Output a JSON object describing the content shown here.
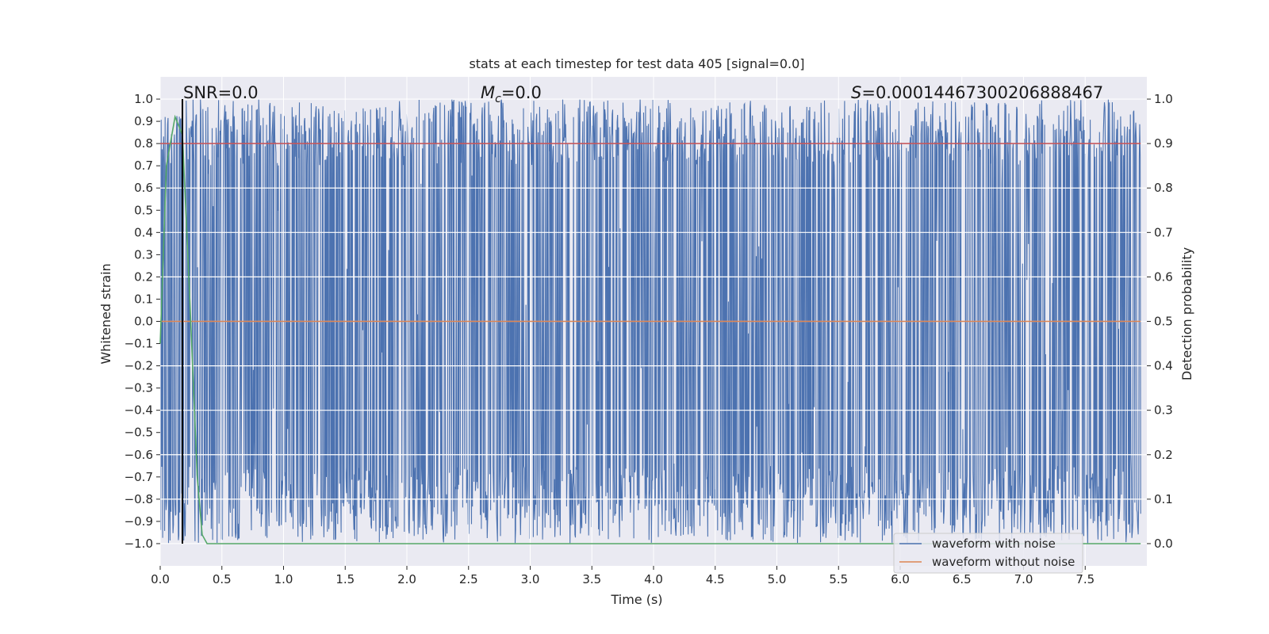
{
  "chart_data": {
    "type": "line",
    "title": "stats at each timestep for test data 405 [signal=0.0]",
    "xlabel": "Time (s)",
    "ylabel": "Whitened strain",
    "ylabel_right": "Detection probability",
    "xlim": [
      0.0,
      8.0
    ],
    "ylim": [
      -1.1,
      1.1
    ],
    "ylim_right": [
      -0.05,
      1.05
    ],
    "x_ticks": [
      "0.0",
      "0.5",
      "1.0",
      "1.5",
      "2.0",
      "2.5",
      "3.0",
      "3.5",
      "4.0",
      "4.5",
      "5.0",
      "5.5",
      "6.0",
      "6.5",
      "7.0",
      "7.5"
    ],
    "y_ticks": [
      "1.0",
      "0.9",
      "0.8",
      "0.7",
      "0.6",
      "0.5",
      "0.4",
      "0.3",
      "0.2",
      "0.1",
      "0.0",
      "−0.1",
      "−0.2",
      "−0.3",
      "−0.4",
      "−0.5",
      "−0.6",
      "−0.7",
      "−0.8",
      "−0.9",
      "−1.0"
    ],
    "y_ticks_right": [
      "1.0",
      "0.9",
      "0.8",
      "0.7",
      "0.6",
      "0.5",
      "0.4",
      "0.3",
      "0.2",
      "0.1",
      "0.0"
    ],
    "grid": true,
    "legend_position": "lower-right",
    "annotations": {
      "snr": "SNR=0.0",
      "mc_symbol": "M",
      "mc_sub": "c",
      "mc_value": "=0.0",
      "s_symbol": "S",
      "s_value": "=0.00014467300206888467"
    },
    "marker_line_x": 0.18,
    "series": [
      {
        "name": "waveform with noise",
        "axis": "left",
        "color": "#4c72b0",
        "style": "dense noise spanning roughly -1.0 to 1.0",
        "x_range": [
          0.0,
          7.95
        ]
      },
      {
        "name": "waveform without noise",
        "axis": "left",
        "color": "#dd8452",
        "x": [
          0.0,
          7.95
        ],
        "y": [
          0.0,
          0.0
        ]
      },
      {
        "axis": "right",
        "color": "#c44e52",
        "x": [
          0.0,
          7.95
        ],
        "y": [
          0.9,
          0.9
        ]
      },
      {
        "axis": "right",
        "color": "#55a868",
        "x": [
          0.0,
          0.05,
          0.12,
          0.18,
          0.24,
          0.3,
          0.34,
          0.38,
          7.95
        ],
        "y": [
          0.45,
          0.85,
          0.96,
          0.92,
          0.55,
          0.15,
          0.02,
          0.0,
          0.0
        ]
      }
    ],
    "colors": {
      "plot_bg": "#eaeaf2",
      "grid": "#ffffff",
      "marker_line": "#000000"
    }
  }
}
